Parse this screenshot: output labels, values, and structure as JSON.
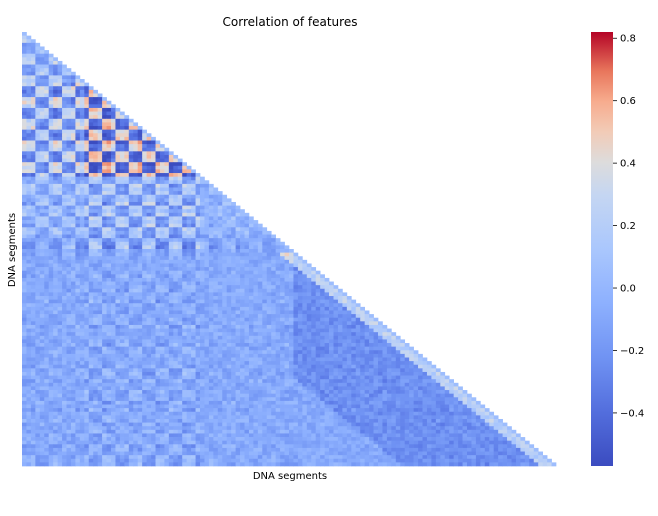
{
  "chart_data": {
    "type": "heatmap",
    "title": "Correlation of features",
    "xlabel": "DNA segments",
    "ylabel": "DNA segments",
    "mask": "upper triangle (lower triangle shown)",
    "colormap": "coolwarm",
    "colorbar": {
      "vmin": -0.57,
      "vmax": 0.82,
      "ticks": [
        -0.4,
        -0.2,
        0.0,
        0.2,
        0.4,
        0.6,
        0.8
      ],
      "tick_labels": [
        "−0.4",
        "−0.2",
        "0.0",
        "0.2",
        "0.4",
        "0.6",
        "0.8"
      ]
    },
    "n_features": 120,
    "tick_labels_shown": false
  },
  "colors": {
    "cmap_low": "#3b4cc0",
    "cmap_mid": "#dddddd",
    "cmap_high": "#b40426",
    "background": "#ffffff"
  }
}
